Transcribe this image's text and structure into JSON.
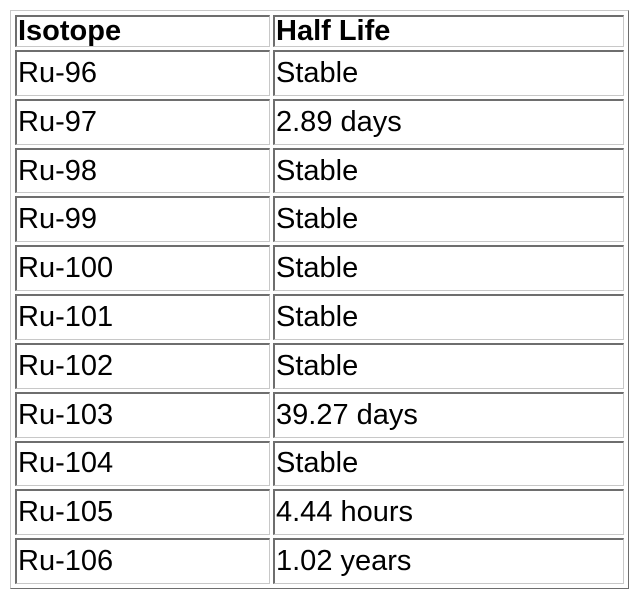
{
  "table": {
    "headers": [
      "Isotope",
      "Half Life"
    ],
    "rows": [
      [
        "Ru-96",
        "Stable"
      ],
      [
        "Ru-97",
        "2.89 days"
      ],
      [
        "Ru-98",
        "Stable"
      ],
      [
        "Ru-99",
        "Stable"
      ],
      [
        "Ru-100",
        "Stable"
      ],
      [
        "Ru-101",
        "Stable"
      ],
      [
        "Ru-102",
        "Stable"
      ],
      [
        "Ru-103",
        "39.27 days"
      ],
      [
        "Ru-104",
        "Stable"
      ],
      [
        "Ru-105",
        "4.44 hours"
      ],
      [
        "Ru-106",
        "1.02 years"
      ]
    ]
  }
}
